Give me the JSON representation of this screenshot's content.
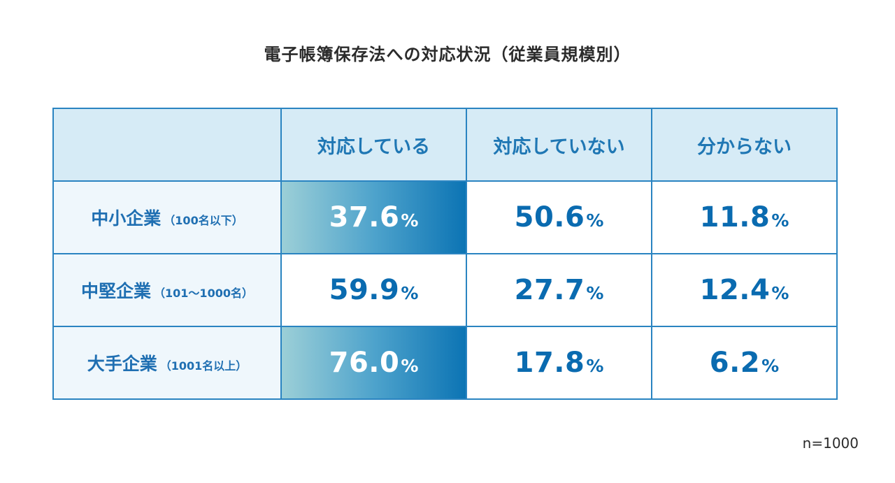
{
  "chart_data": {
    "type": "table",
    "title": "電子帳簿保存法への対応状況（従業員規模別）",
    "columns": [
      "対応している",
      "対応していない",
      "分からない"
    ],
    "rows": [
      {
        "name": "中小企業",
        "sub": "（100名以下）",
        "values": [
          "37.6",
          "50.6",
          "11.8"
        ],
        "highlight": [
          true,
          false,
          false
        ]
      },
      {
        "name": "中堅企業",
        "sub": "（101〜1000名）",
        "values": [
          "59.9",
          "27.7",
          "12.4"
        ],
        "highlight": [
          false,
          false,
          false
        ]
      },
      {
        "name": "大手企業",
        "sub": "（1001名以上）",
        "values": [
          "76.0",
          "17.8",
          "6.2"
        ],
        "highlight": [
          true,
          false,
          false
        ]
      }
    ],
    "unit": "%",
    "note": "n=1000",
    "colors": {
      "accent": "#1f77b4",
      "header_bg": "#d6ebf6",
      "row_header_bg": "#eff7fc",
      "border": "#2a84c1",
      "highlight_from": "#9ccfd7",
      "highlight_to": "#0c74b4"
    }
  }
}
